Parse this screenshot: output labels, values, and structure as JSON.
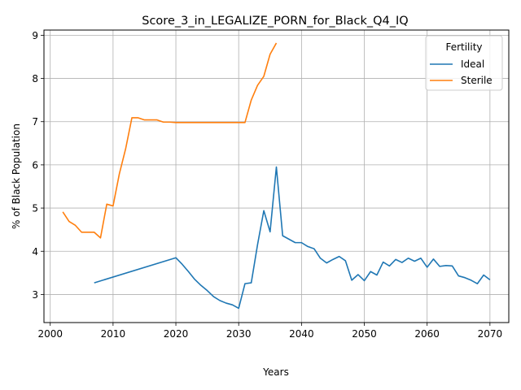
{
  "chart_data": {
    "type": "line",
    "title": "Score_3_in_LEGALIZE_PORN_for_Black_Q4_IQ",
    "xlabel": "Years",
    "ylabel": "% of Black Population",
    "xlim": [
      1999,
      2073
    ],
    "ylim": [
      2.35,
      9.12
    ],
    "xticks": [
      2000,
      2010,
      2020,
      2030,
      2040,
      2050,
      2060,
      2070
    ],
    "yticks": [
      3,
      4,
      5,
      6,
      7,
      8,
      9
    ],
    "grid": true,
    "legend": {
      "title": "Fertility",
      "position": "top-right",
      "entries": [
        "Ideal",
        "Sterile"
      ]
    },
    "series": [
      {
        "name": "Ideal",
        "color": "#1f77b4",
        "x": [
          2007,
          2020,
          2021,
          2022,
          2023,
          2024,
          2025,
          2026,
          2027,
          2028,
          2029,
          2030,
          2031,
          2032,
          2033,
          2034,
          2035,
          2036,
          2037,
          2038,
          2039,
          2040,
          2041,
          2042,
          2043,
          2044,
          2045,
          2046,
          2047,
          2048,
          2049,
          2050,
          2051,
          2052,
          2053,
          2054,
          2055,
          2056,
          2057,
          2058,
          2059,
          2060,
          2061,
          2062,
          2063,
          2064,
          2065,
          2066,
          2067,
          2068,
          2069,
          2070
        ],
        "y": [
          3.27,
          3.85,
          3.7,
          3.53,
          3.35,
          3.21,
          3.09,
          2.95,
          2.86,
          2.8,
          2.76,
          2.68,
          3.25,
          3.27,
          4.15,
          4.94,
          4.45,
          5.95,
          4.36,
          4.28,
          4.2,
          4.2,
          4.11,
          4.06,
          3.84,
          3.73,
          3.81,
          3.88,
          3.78,
          3.33,
          3.46,
          3.32,
          3.53,
          3.45,
          3.75,
          3.66,
          3.81,
          3.74,
          3.84,
          3.77,
          3.84,
          3.63,
          3.82,
          3.65,
          3.67,
          3.66,
          3.43,
          3.39,
          3.33,
          3.25,
          3.45,
          3.34
        ]
      },
      {
        "name": "Sterile",
        "color": "#ff7f0e",
        "x": [
          2002,
          2003,
          2004,
          2005,
          2006,
          2007,
          2008,
          2009,
          2010,
          2011,
          2012,
          2013,
          2014,
          2015,
          2016,
          2017,
          2018,
          2019,
          2020,
          2021,
          2022,
          2023,
          2024,
          2025,
          2026,
          2027,
          2028,
          2029,
          2030,
          2031,
          2032,
          2033,
          2034,
          2035,
          2036
        ],
        "y": [
          4.91,
          4.69,
          4.6,
          4.44,
          4.44,
          4.44,
          4.31,
          5.09,
          5.05,
          5.79,
          6.37,
          7.09,
          7.09,
          7.04,
          7.04,
          7.04,
          6.99,
          6.99,
          6.98,
          6.98,
          6.98,
          6.98,
          6.98,
          6.98,
          6.98,
          6.98,
          6.98,
          6.98,
          6.98,
          6.98,
          7.5,
          7.84,
          8.05,
          8.56,
          8.82
        ]
      }
    ]
  }
}
